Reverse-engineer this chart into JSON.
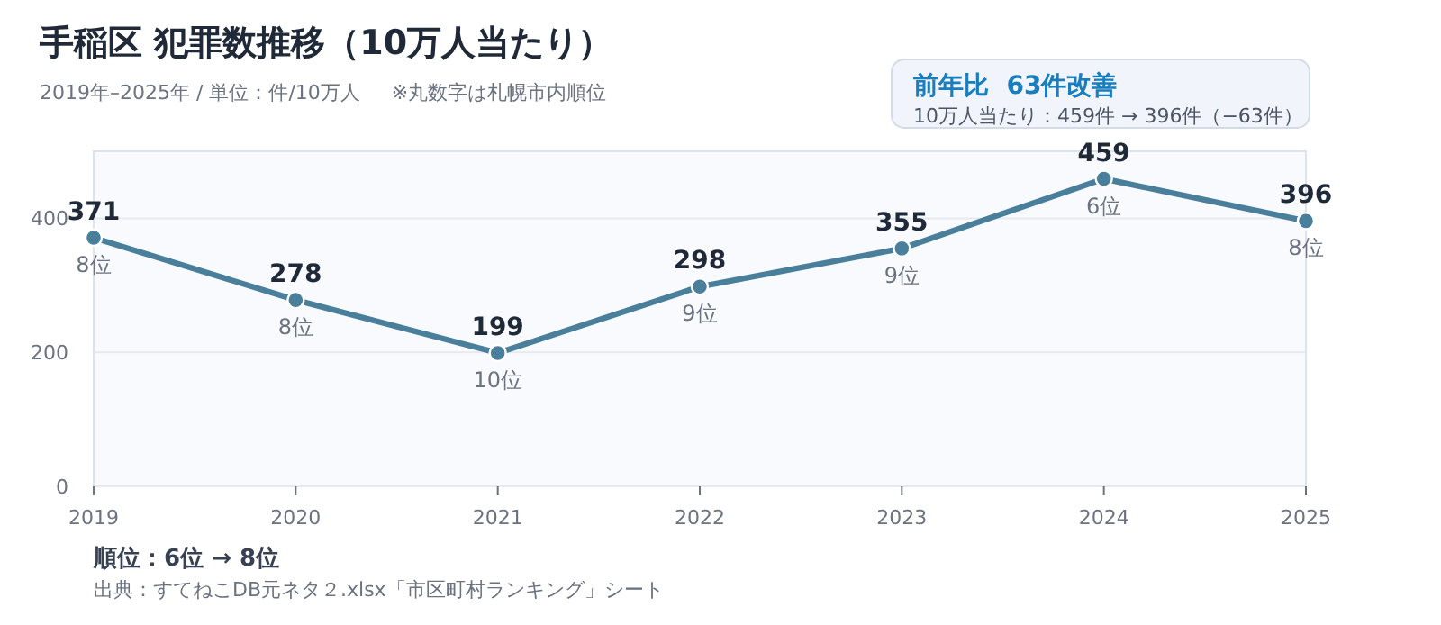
{
  "chart_data": {
    "type": "line",
    "title": "手稲区  犯罪数推移（10万人当たり）",
    "subtitle": "2019年–2025年 / 単位：件/10万人     ※丸数字は札幌市内順位",
    "categories": [
      "2019",
      "2020",
      "2021",
      "2022",
      "2023",
      "2024",
      "2025"
    ],
    "series": [
      {
        "color": "#4a7f9c",
        "values": [
          371,
          278,
          199,
          298,
          355,
          459,
          396
        ]
      }
    ],
    "ylim": [
      0,
      500
    ],
    "yticks": [
      0,
      200,
      400
    ],
    "grid": "y",
    "marker": "circle",
    "line_style": "solid",
    "data_labels": true,
    "annotations": [
      "前年比  63件改善",
      "10万人当たり：459件 → 396件（−63件）",
      "順位：6位 → 8位",
      "出典：すてねこDB元ネタ２.xlsx「市区町村ランキング」シート",
      {
        "text": "8位",
        "x": "2019",
        "y": 371
      },
      {
        "text": "8位",
        "x": "2020",
        "y": 278
      },
      {
        "text": "10位",
        "x": "2021",
        "y": 199
      },
      {
        "text": "9位",
        "x": "2022",
        "y": 298
      },
      {
        "text": "9位",
        "x": "2023",
        "y": 355
      },
      {
        "text": "6位",
        "x": "2024",
        "y": 459
      },
      {
        "text": "8位",
        "x": "2025",
        "y": 396
      }
    ]
  }
}
